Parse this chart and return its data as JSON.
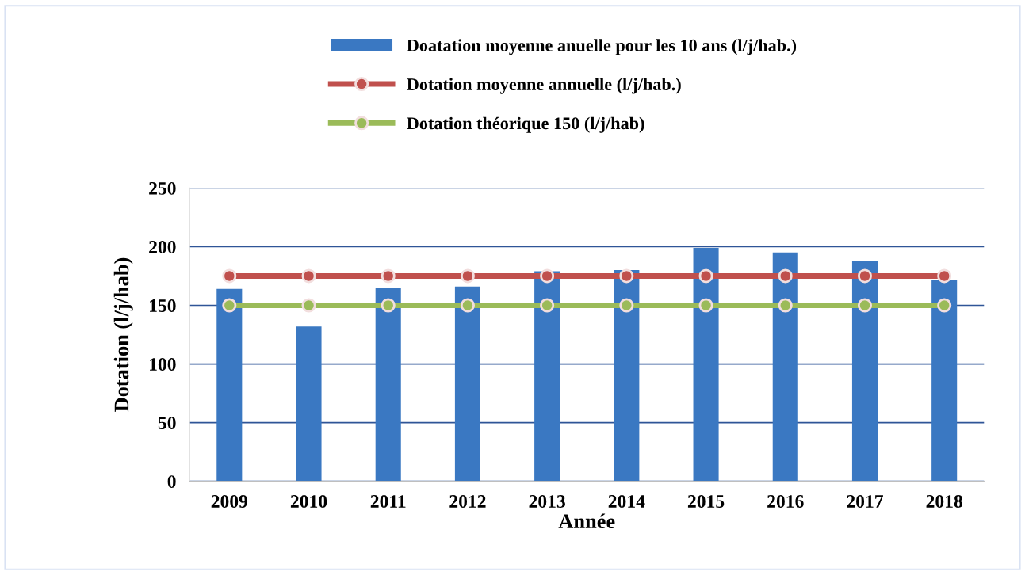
{
  "chart_data": {
    "type": "bar",
    "xlabel": "Année",
    "ylabel": "Dotation (l/j/hab)",
    "categories": [
      "2009",
      "2010",
      "2011",
      "2012",
      "2013",
      "2014",
      "2015",
      "2016",
      "2017",
      "2018"
    ],
    "series": [
      {
        "name": "Doatation moyenne anuelle pour les 10 ans (l/j/hab.)",
        "color": "#3a78c2",
        "values": [
          164,
          132,
          165,
          166,
          179,
          180,
          199,
          195,
          188,
          172
        ]
      },
      {
        "name": "Dotation moyenne annuelle (l/j/hab.)",
        "type": "line",
        "color": "#c0504d",
        "values": [
          175,
          175,
          175,
          175,
          175,
          175,
          175,
          175,
          175,
          175
        ]
      },
      {
        "name": "Dotation théorique 150 (l/j/hab)",
        "type": "line",
        "color": "#9bbb59",
        "values": [
          150,
          150,
          150,
          150,
          150,
          150,
          150,
          150,
          150,
          150
        ]
      }
    ],
    "ylim": [
      0,
      250
    ],
    "yticks": [
      0,
      50,
      100,
      150,
      200,
      250
    ],
    "grid": "y",
    "legend": "top",
    "marker": "circle",
    "line_style": "solid"
  }
}
